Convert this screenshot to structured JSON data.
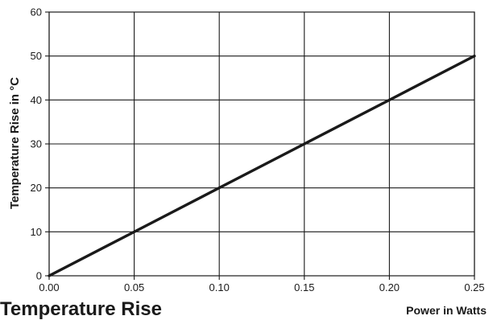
{
  "chart_data": {
    "type": "line",
    "caption": "Temperature Rise",
    "xlabel": "Power in Watts",
    "ylabel": "Temperature Rise in °C",
    "xlim": [
      0,
      0.25
    ],
    "ylim": [
      0,
      60
    ],
    "x_ticks": [
      "0.00",
      "0.05",
      "0.10",
      "0.15",
      "0.20",
      "0.25"
    ],
    "y_ticks": [
      "0",
      "10",
      "20",
      "30",
      "40",
      "50",
      "60"
    ],
    "grid": true,
    "series": [
      {
        "x": [
          0,
          0.05,
          0.1,
          0.15,
          0.2,
          0.25
        ],
        "y": [
          0,
          10,
          20,
          30,
          40,
          50
        ]
      }
    ]
  },
  "colors": {
    "line": "#1a1a1a",
    "grid": "#1a1a1a"
  }
}
